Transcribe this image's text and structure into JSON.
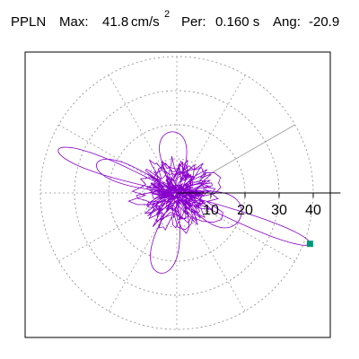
{
  "header": {
    "station": "PPLN",
    "max_label": "Max:",
    "max_value": "41.8",
    "max_unit": "cm/s",
    "max_unit_exp": "2",
    "per_label": "Per:",
    "per_value": "0.160 s",
    "ang_label": "Ang:",
    "ang_value": "-20.9"
  },
  "chart_data": {
    "type": "polar-scatter",
    "title": "",
    "radial_unit": "cm/s^2",
    "radial_ticks": [
      10,
      20,
      30,
      40
    ],
    "radial_tick_labels": [
      "10",
      "20",
      "30",
      "40"
    ],
    "rmax": 45,
    "angle_grid_deg": [
      0,
      30,
      60,
      90,
      120,
      150,
      180,
      210,
      240,
      270,
      300,
      330
    ],
    "highlight_angle_deg": 30,
    "grid": "dotted",
    "trace_color": "#8800cc",
    "marker_color": "#009977",
    "max_point": {
      "radius": 41.8,
      "angle_deg": -20.9
    },
    "trace_shape": {
      "main_orientation_deg": -20.9,
      "extreme_opposite": {
        "radius": 37,
        "angle_deg": 160
      },
      "approx_extent_x": [
        -37,
        41
      ],
      "approx_extent_y": [
        -22,
        20
      ]
    }
  }
}
